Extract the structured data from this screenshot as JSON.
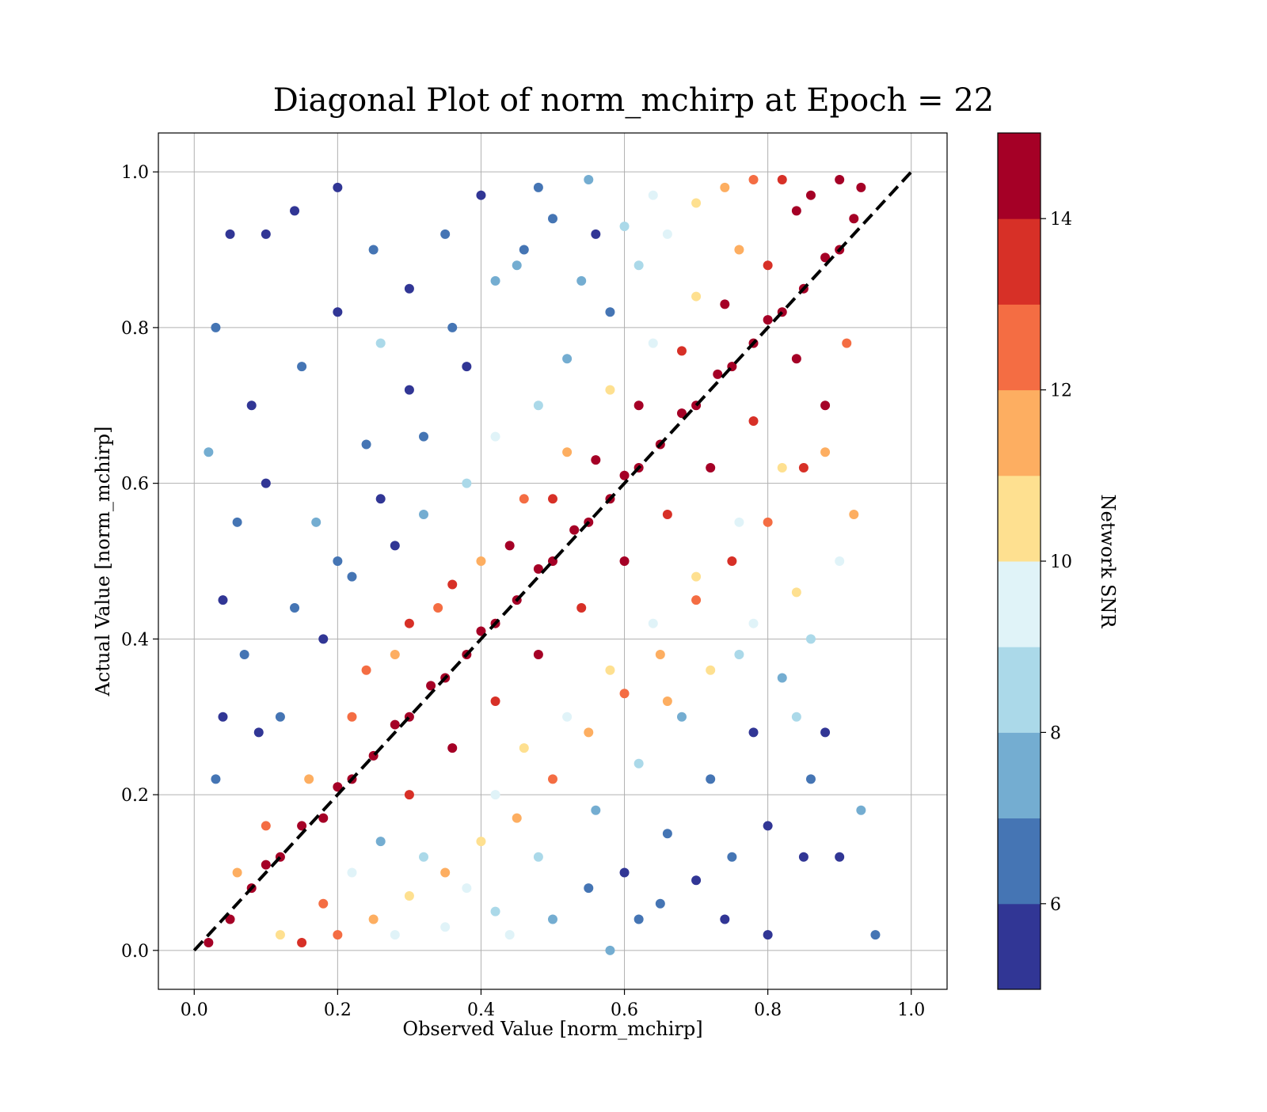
{
  "chart_data": {
    "type": "scatter",
    "title": "Diagonal Plot of norm_mchirp at Epoch = 22",
    "xlabel": "Observed Value [norm_mchirp]",
    "ylabel": "Actual Value [norm_mchirp]",
    "xlim": [
      -0.05,
      1.05
    ],
    "ylim": [
      -0.05,
      1.05
    ],
    "xticks": [
      0.0,
      0.2,
      0.4,
      0.6,
      0.8,
      1.0
    ],
    "xtick_labels": [
      "0.0",
      "0.2",
      "0.4",
      "0.6",
      "0.8",
      "1.0"
    ],
    "yticks": [
      0.0,
      0.2,
      0.4,
      0.6,
      0.8,
      1.0
    ],
    "ytick_labels": [
      "0.0",
      "0.2",
      "0.4",
      "0.6",
      "0.8",
      "1.0"
    ],
    "grid": true,
    "reference_line": {
      "x": [
        0.0,
        1.0
      ],
      "y": [
        0.0,
        1.0
      ],
      "color": "#000000",
      "style": "dashed"
    },
    "colorbar": {
      "label": "Network SNR",
      "min": 5,
      "max": 15,
      "ticks": [
        6,
        8,
        10,
        12,
        14
      ],
      "tick_labels": [
        "6",
        "8",
        "10",
        "12",
        "14"
      ],
      "colors": [
        "#313695",
        "#4575b4",
        "#74add1",
        "#abd9e9",
        "#e0f3f8",
        "#fee090",
        "#fdae61",
        "#f46d43",
        "#d73027",
        "#a50026"
      ]
    },
    "points": [
      [
        0.02,
        0.01,
        15
      ],
      [
        0.05,
        0.04,
        15
      ],
      [
        0.08,
        0.08,
        15
      ],
      [
        0.1,
        0.11,
        15
      ],
      [
        0.12,
        0.12,
        15
      ],
      [
        0.15,
        0.16,
        15
      ],
      [
        0.18,
        0.17,
        15
      ],
      [
        0.2,
        0.21,
        15
      ],
      [
        0.22,
        0.22,
        15
      ],
      [
        0.25,
        0.25,
        15
      ],
      [
        0.28,
        0.29,
        15
      ],
      [
        0.3,
        0.3,
        15
      ],
      [
        0.33,
        0.34,
        15
      ],
      [
        0.35,
        0.35,
        15
      ],
      [
        0.38,
        0.38,
        15
      ],
      [
        0.4,
        0.41,
        15
      ],
      [
        0.42,
        0.42,
        15
      ],
      [
        0.45,
        0.45,
        15
      ],
      [
        0.48,
        0.49,
        15
      ],
      [
        0.5,
        0.5,
        15
      ],
      [
        0.53,
        0.54,
        15
      ],
      [
        0.55,
        0.55,
        15
      ],
      [
        0.58,
        0.58,
        15
      ],
      [
        0.6,
        0.61,
        15
      ],
      [
        0.62,
        0.62,
        15
      ],
      [
        0.65,
        0.65,
        15
      ],
      [
        0.68,
        0.69,
        15
      ],
      [
        0.7,
        0.7,
        15
      ],
      [
        0.73,
        0.74,
        15
      ],
      [
        0.75,
        0.75,
        15
      ],
      [
        0.78,
        0.78,
        15
      ],
      [
        0.8,
        0.81,
        15
      ],
      [
        0.82,
        0.82,
        15
      ],
      [
        0.85,
        0.85,
        15
      ],
      [
        0.88,
        0.89,
        15
      ],
      [
        0.9,
        0.9,
        15
      ],
      [
        0.92,
        0.94,
        15
      ],
      [
        0.93,
        0.98,
        15
      ],
      [
        0.9,
        0.99,
        15
      ],
      [
        0.86,
        0.97,
        15
      ],
      [
        0.88,
        0.7,
        14
      ],
      [
        0.85,
        0.62,
        13
      ],
      [
        0.8,
        0.55,
        12
      ],
      [
        0.75,
        0.5,
        13
      ],
      [
        0.7,
        0.45,
        12
      ],
      [
        0.65,
        0.38,
        11
      ],
      [
        0.6,
        0.33,
        12
      ],
      [
        0.55,
        0.28,
        11
      ],
      [
        0.5,
        0.22,
        12
      ],
      [
        0.45,
        0.17,
        11
      ],
      [
        0.4,
        0.14,
        10
      ],
      [
        0.35,
        0.1,
        11
      ],
      [
        0.3,
        0.07,
        10
      ],
      [
        0.25,
        0.04,
        11
      ],
      [
        0.2,
        0.02,
        12
      ],
      [
        0.15,
        0.01,
        13
      ],
      [
        0.12,
        0.02,
        10
      ],
      [
        0.18,
        0.06,
        12
      ],
      [
        0.28,
        0.02,
        9
      ],
      [
        0.35,
        0.03,
        9
      ],
      [
        0.42,
        0.05,
        8
      ],
      [
        0.5,
        0.04,
        7
      ],
      [
        0.55,
        0.08,
        6
      ],
      [
        0.6,
        0.1,
        5
      ],
      [
        0.65,
        0.06,
        6
      ],
      [
        0.7,
        0.09,
        5
      ],
      [
        0.75,
        0.12,
        6
      ],
      [
        0.8,
        0.02,
        5
      ],
      [
        0.85,
        0.12,
        5
      ],
      [
        0.72,
        0.22,
        6
      ],
      [
        0.78,
        0.28,
        5
      ],
      [
        0.82,
        0.35,
        7
      ],
      [
        0.86,
        0.4,
        8
      ],
      [
        0.9,
        0.5,
        9
      ],
      [
        0.92,
        0.56,
        11
      ],
      [
        0.84,
        0.46,
        10
      ],
      [
        0.76,
        0.38,
        8
      ],
      [
        0.68,
        0.3,
        7
      ],
      [
        0.62,
        0.24,
        8
      ],
      [
        0.56,
        0.18,
        7
      ],
      [
        0.48,
        0.12,
        8
      ],
      [
        0.44,
        0.02,
        9
      ],
      [
        0.38,
        0.08,
        9
      ],
      [
        0.32,
        0.12,
        8
      ],
      [
        0.26,
        0.14,
        7
      ],
      [
        0.22,
        0.1,
        9
      ],
      [
        0.58,
        0.0,
        7
      ],
      [
        0.66,
        0.15,
        6
      ],
      [
        0.74,
        0.04,
        5
      ],
      [
        0.62,
        0.04,
        6
      ],
      [
        0.12,
        0.3,
        6
      ],
      [
        0.18,
        0.4,
        5
      ],
      [
        0.22,
        0.48,
        6
      ],
      [
        0.28,
        0.52,
        5
      ],
      [
        0.32,
        0.56,
        7
      ],
      [
        0.38,
        0.6,
        8
      ],
      [
        0.42,
        0.66,
        9
      ],
      [
        0.48,
        0.7,
        8
      ],
      [
        0.52,
        0.76,
        7
      ],
      [
        0.58,
        0.82,
        6
      ],
      [
        0.62,
        0.88,
        8
      ],
      [
        0.66,
        0.92,
        9
      ],
      [
        0.7,
        0.96,
        10
      ],
      [
        0.74,
        0.98,
        11
      ],
      [
        0.78,
        0.99,
        12
      ],
      [
        0.82,
        0.99,
        13
      ],
      [
        0.84,
        0.95,
        14
      ],
      [
        0.76,
        0.9,
        11
      ],
      [
        0.7,
        0.84,
        10
      ],
      [
        0.64,
        0.78,
        9
      ],
      [
        0.58,
        0.72,
        10
      ],
      [
        0.52,
        0.64,
        11
      ],
      [
        0.46,
        0.58,
        12
      ],
      [
        0.4,
        0.5,
        11
      ],
      [
        0.34,
        0.44,
        12
      ],
      [
        0.28,
        0.38,
        11
      ],
      [
        0.22,
        0.3,
        12
      ],
      [
        0.16,
        0.22,
        11
      ],
      [
        0.1,
        0.16,
        12
      ],
      [
        0.06,
        0.1,
        11
      ],
      [
        0.1,
        0.92,
        5
      ],
      [
        0.14,
        0.95,
        5
      ],
      [
        0.2,
        0.98,
        5
      ],
      [
        0.25,
        0.9,
        6
      ],
      [
        0.3,
        0.85,
        5
      ],
      [
        0.35,
        0.92,
        6
      ],
      [
        0.4,
        0.97,
        5
      ],
      [
        0.45,
        0.88,
        7
      ],
      [
        0.5,
        0.94,
        6
      ],
      [
        0.55,
        0.99,
        7
      ],
      [
        0.08,
        0.7,
        5
      ],
      [
        0.06,
        0.55,
        6
      ],
      [
        0.04,
        0.45,
        5
      ],
      [
        0.1,
        0.6,
        5
      ],
      [
        0.15,
        0.75,
        6
      ],
      [
        0.2,
        0.82,
        5
      ],
      [
        0.24,
        0.65,
        6
      ],
      [
        0.3,
        0.72,
        5
      ],
      [
        0.36,
        0.8,
        6
      ],
      [
        0.42,
        0.86,
        7
      ],
      [
        0.03,
        0.8,
        6
      ],
      [
        0.05,
        0.92,
        5
      ],
      [
        0.02,
        0.64,
        7
      ],
      [
        0.07,
        0.38,
        6
      ],
      [
        0.04,
        0.3,
        5
      ],
      [
        0.03,
        0.22,
        6
      ],
      [
        0.09,
        0.28,
        5
      ],
      [
        0.14,
        0.44,
        6
      ],
      [
        0.17,
        0.55,
        7
      ],
      [
        0.26,
        0.78,
        8
      ],
      [
        0.88,
        0.28,
        5
      ],
      [
        0.9,
        0.12,
        5
      ],
      [
        0.95,
        0.02,
        6
      ],
      [
        0.93,
        0.18,
        7
      ],
      [
        0.86,
        0.22,
        6
      ],
      [
        0.8,
        0.16,
        5
      ],
      [
        0.84,
        0.3,
        8
      ],
      [
        0.78,
        0.42,
        9
      ],
      [
        0.72,
        0.36,
        10
      ],
      [
        0.66,
        0.32,
        11
      ],
      [
        0.24,
        0.36,
        12
      ],
      [
        0.3,
        0.42,
        13
      ],
      [
        0.36,
        0.47,
        13
      ],
      [
        0.44,
        0.52,
        14
      ],
      [
        0.5,
        0.58,
        13
      ],
      [
        0.56,
        0.63,
        14
      ],
      [
        0.62,
        0.7,
        14
      ],
      [
        0.68,
        0.77,
        13
      ],
      [
        0.74,
        0.83,
        14
      ],
      [
        0.8,
        0.88,
        13
      ],
      [
        0.3,
        0.2,
        13
      ],
      [
        0.36,
        0.26,
        14
      ],
      [
        0.42,
        0.32,
        13
      ],
      [
        0.48,
        0.38,
        14
      ],
      [
        0.54,
        0.44,
        13
      ],
      [
        0.6,
        0.5,
        14
      ],
      [
        0.66,
        0.56,
        13
      ],
      [
        0.72,
        0.62,
        14
      ],
      [
        0.78,
        0.68,
        13
      ],
      [
        0.84,
        0.76,
        14
      ],
      [
        0.46,
        0.9,
        6
      ],
      [
        0.54,
        0.86,
        7
      ],
      [
        0.6,
        0.93,
        8
      ],
      [
        0.64,
        0.97,
        9
      ],
      [
        0.56,
        0.92,
        5
      ],
      [
        0.48,
        0.98,
        6
      ],
      [
        0.38,
        0.75,
        5
      ],
      [
        0.32,
        0.66,
        6
      ],
      [
        0.26,
        0.58,
        5
      ],
      [
        0.2,
        0.5,
        6
      ],
      [
        0.42,
        0.2,
        9
      ],
      [
        0.46,
        0.26,
        10
      ],
      [
        0.52,
        0.3,
        9
      ],
      [
        0.58,
        0.36,
        10
      ],
      [
        0.64,
        0.42,
        9
      ],
      [
        0.7,
        0.48,
        10
      ],
      [
        0.76,
        0.55,
        9
      ],
      [
        0.82,
        0.62,
        10
      ],
      [
        0.88,
        0.64,
        11
      ],
      [
        0.91,
        0.78,
        12
      ]
    ]
  }
}
